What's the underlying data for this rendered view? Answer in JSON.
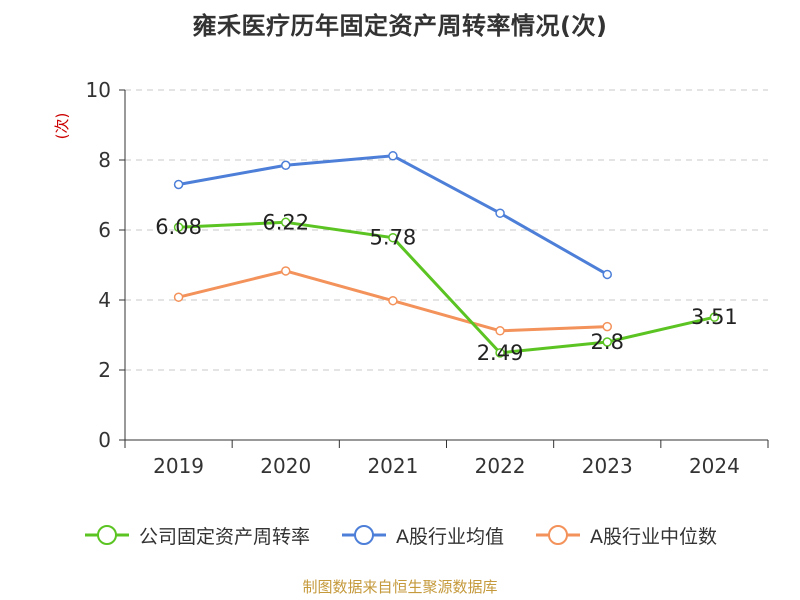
{
  "title": "雍禾医疗历年固定资产周转率情况(次)",
  "source": "制图数据来自恒生聚源数据库",
  "colors": {
    "company": "#5bc423",
    "industry_avg": "#4d7fd8",
    "industry_median": "#f3925a",
    "axis": "#333333",
    "grid": "#c8c8c8",
    "unit": "#cc0000",
    "source": "#c59a3c"
  },
  "chart_data": {
    "type": "line",
    "categories": [
      "2019",
      "2020",
      "2021",
      "2022",
      "2023",
      "2024"
    ],
    "ylabel": "(次)",
    "ylim": [
      0,
      10
    ],
    "yticks": [
      "0",
      "2",
      "4",
      "6",
      "8",
      "10"
    ],
    "grid": true,
    "legend_position": "bottom",
    "series": [
      {
        "name": "公司固定资产周转率",
        "color": "#5bc423",
        "values": [
          6.08,
          6.22,
          5.78,
          2.49,
          2.8,
          3.51
        ],
        "labels": [
          "6.08",
          "6.22",
          "5.78",
          "2.49",
          "2.8",
          "3.51"
        ]
      },
      {
        "name": "A股行业均值",
        "color": "#4d7fd8",
        "values": [
          7.3,
          7.85,
          8.12,
          6.48,
          4.73,
          null
        ]
      },
      {
        "name": "A股行业中位数",
        "color": "#f3925a",
        "values": [
          4.08,
          4.83,
          3.98,
          3.12,
          3.24,
          null
        ]
      }
    ]
  }
}
